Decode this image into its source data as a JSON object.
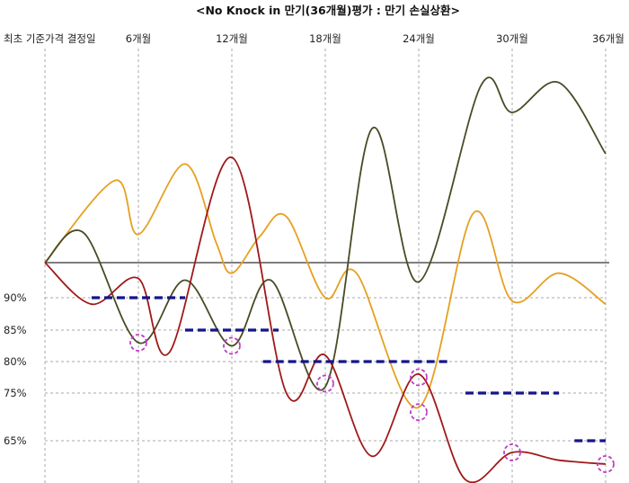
{
  "title": "<No Knock in 만기(36개월)평가 : 만기 손실상환>",
  "chart_data": {
    "type": "line",
    "x_start_label": "최초 기준가격 결정일",
    "x_tick_labels": [
      "6개월",
      "12개월",
      "18개월",
      "24개월",
      "30개월",
      "36개월"
    ],
    "x_months": [
      0,
      6,
      12,
      18,
      24,
      30,
      36
    ],
    "y_tick_labels": [
      "90%",
      "85%",
      "80%",
      "75%",
      "65%"
    ],
    "y_ticks": [
      90,
      85,
      80,
      75,
      65
    ],
    "baseline": 100,
    "ylim": [
      60,
      143
    ],
    "barriers": [
      {
        "period": "6개월",
        "level": 90,
        "from": 3,
        "to": 9
      },
      {
        "period": "12개월",
        "level": 85,
        "from": 9,
        "to": 15
      },
      {
        "period": "18개월",
        "level": 80,
        "from": 14,
        "to": 26
      },
      {
        "period": "30개월",
        "level": 75,
        "from": 27,
        "to": 33
      },
      {
        "period": "36개월",
        "level": 65,
        "from": 34,
        "to": 36
      }
    ],
    "series": [
      {
        "color": "#e6a020",
        "points": [
          [
            0,
            100
          ],
          [
            4.5,
            112.5
          ],
          [
            6,
            104.3
          ],
          [
            9,
            115
          ],
          [
            11,
            103
          ],
          [
            12,
            97
          ],
          [
            13.8,
            104
          ],
          [
            15.5,
            107
          ],
          [
            18,
            90
          ],
          [
            20,
            97
          ],
          [
            24,
            72
          ],
          [
            27.5,
            107.5
          ],
          [
            30,
            89.5
          ],
          [
            33,
            97
          ],
          [
            36,
            89
          ]
        ]
      },
      {
        "color": "#4a4a25",
        "points": [
          [
            0,
            100
          ],
          [
            2.5,
            104.5
          ],
          [
            6,
            83
          ],
          [
            9,
            95
          ],
          [
            12,
            82.5
          ],
          [
            14.5,
            95
          ],
          [
            18,
            76
          ],
          [
            21,
            120
          ],
          [
            24,
            94.5
          ],
          [
            28,
            128
          ],
          [
            30,
            123
          ],
          [
            33,
            128.5
          ],
          [
            36,
            116.5
          ]
        ]
      },
      {
        "color": "#a01818",
        "points": [
          [
            0,
            100
          ],
          [
            3,
            89
          ],
          [
            6,
            95.5
          ],
          [
            8,
            81.5
          ],
          [
            12,
            116
          ],
          [
            15.5,
            75
          ],
          [
            18,
            81
          ],
          [
            21,
            63
          ],
          [
            24,
            78
          ],
          [
            27,
            60
          ],
          [
            30,
            63.5
          ],
          [
            33,
            62.5
          ],
          [
            36,
            62
          ]
        ]
      }
    ],
    "observation_markers": [
      [
        6,
        83
      ],
      [
        12,
        82.5
      ],
      [
        18,
        76.5
      ],
      [
        24,
        71
      ],
      [
        24,
        77.5
      ],
      [
        30,
        63.5
      ],
      [
        36,
        62
      ]
    ]
  },
  "colors": {
    "baseline": "#555555",
    "gridline": "#aaaaaa",
    "barrier": "#15158a",
    "marker": "#c03cc8"
  }
}
